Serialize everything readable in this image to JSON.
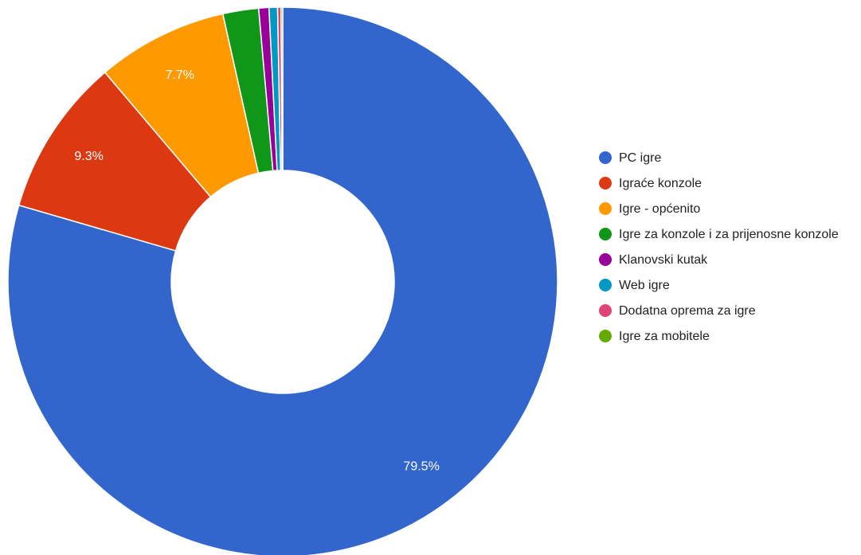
{
  "chart_data": {
    "type": "pie",
    "categories": [
      "PC igre",
      "Igraće konzole",
      "Igre - općenito",
      "Igre za konzole i za prijenosne konzole",
      "Klanovski kutak",
      "Web igre",
      "Dodatna oprema za igre",
      "Igre za mobitele"
    ],
    "values": [
      79.5,
      9.3,
      7.7,
      2.1,
      0.6,
      0.5,
      0.2,
      0.1
    ],
    "data_labels": [
      "79.5%",
      "9.3%",
      "7.7%",
      "",
      "",
      "",
      "",
      ""
    ],
    "colors": [
      "#3366cc",
      "#dc3912",
      "#ff9900",
      "#109618",
      "#990099",
      "#0099c6",
      "#dd4477",
      "#66aa00"
    ],
    "donut": true,
    "legend_position": "right"
  }
}
